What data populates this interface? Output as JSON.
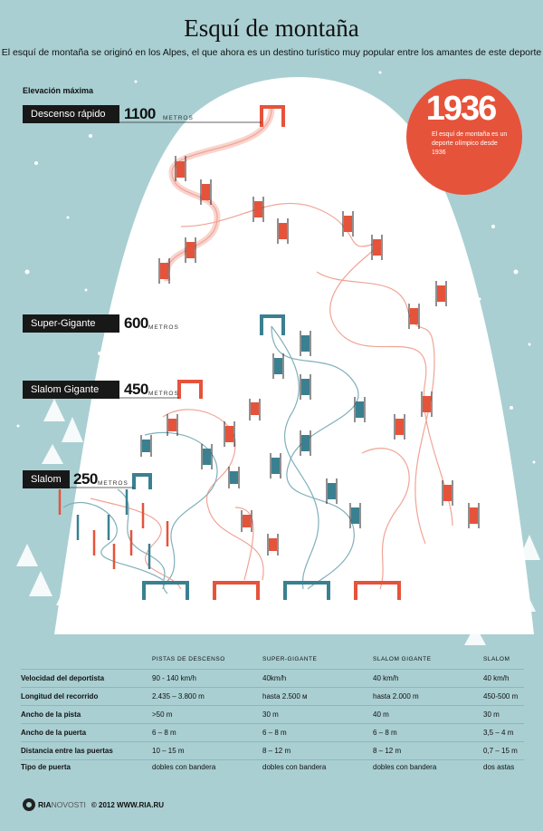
{
  "title": "Esquí de montaña",
  "subtitle": "El esquí de montaña se originó en los Alpes, el que ahora es un destino turístico muy popular entre los amantes de este deporte",
  "elevation_heading": "Elevación máxima",
  "unit": "METROS",
  "disciplines": [
    {
      "name": "Descenso rápido",
      "value": "1100"
    },
    {
      "name": "Super-Gigante",
      "value": "600"
    },
    {
      "name": "Slalom Gigante",
      "value": "450"
    },
    {
      "name": "Slalom",
      "value": "250"
    }
  ],
  "badge": {
    "year": "1936",
    "note": "El esquí de montaña es un deporte olímpico desde 1936",
    "color": "#e6533b"
  },
  "colors": {
    "descent": "#e6533b",
    "supergiant": "#3a8090",
    "background": "#a9cfd2"
  },
  "table": {
    "columns": [
      "PISTAS DE DESCENSO",
      "SUPER-GIGANTE",
      "SLALOM GIGANTE",
      "SLALOM"
    ],
    "rows": [
      {
        "label": "Velocidad del deportista",
        "values": [
          "90 - 140 km/h",
          "40km/h",
          "40 km/h",
          "40 km/h"
        ]
      },
      {
        "label": "Longitud del recorrido",
        "values": [
          "2.435 – 3.800 m",
          "hasta 2.500 м",
          "hasta 2.000 m",
          "450-500 m"
        ]
      },
      {
        "label": "Ancho de la pista",
        "values": [
          ">50 m",
          "30 m",
          "40 m",
          "30 m"
        ]
      },
      {
        "label": "Ancho de la puerta",
        "values": [
          "6 – 8 m",
          "6 – 8 m",
          "6 – 8 m",
          "3,5 – 4 m"
        ]
      },
      {
        "label": "Distancia entre las  puertas",
        "values": [
          "10 – 15 m",
          "8 – 12 m",
          "8 – 12 m",
          "0,7 – 15 m"
        ]
      },
      {
        "label": "Tipo de puerta",
        "values": [
          "dobles con bandera",
          "dobles con bandera",
          "dobles con bandera",
          "dos astas"
        ]
      }
    ]
  },
  "footer": {
    "logo_ria": "RIA",
    "logo_novosti": "NOVOSTI",
    "copyright": "© 2012 WWW.RIA.RU"
  }
}
